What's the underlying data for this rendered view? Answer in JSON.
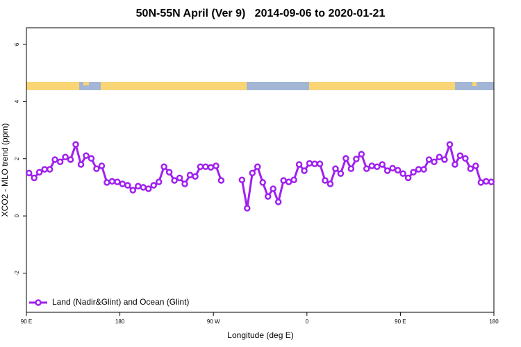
{
  "chart_data": {
    "type": "line",
    "title": "50N-55N April (Ver 9)   2014-09-06 to 2020-01-21",
    "x_label": "Longitude (deg E)",
    "y_label": "XCO2 - MLO trend (ppm)",
    "x": [
      92.5,
      97.5,
      102.5,
      107.5,
      112.5,
      117.5,
      122.5,
      127.5,
      132.5,
      137.5,
      142.5,
      147.5,
      152.5,
      157.5,
      162.5,
      167.5,
      172.5,
      177.5,
      182.5,
      187.5,
      192.5,
      197.5,
      202.5,
      207.5,
      212.5,
      217.5,
      222.5,
      227.5,
      232.5,
      237.5,
      242.5,
      247.5,
      252.5,
      257.5,
      262.5,
      267.5,
      272.5,
      277.5,
      282.5,
      287.5,
      292.5,
      297.5,
      302.5,
      307.5,
      312.5,
      317.5,
      322.5,
      327.5,
      332.5,
      337.5,
      342.5,
      347.5,
      352.5,
      357.5,
      362.5,
      367.5,
      372.5,
      377.5,
      382.5,
      387.5,
      392.5,
      397.5,
      402.5,
      407.5,
      412.5,
      417.5,
      422.5,
      427.5,
      432.5,
      437.5,
      442.5,
      447.5,
      452.5,
      457.5,
      462.5,
      467.5,
      472.5,
      477.5,
      482.5,
      487.5,
      492.5,
      497.5,
      502.5,
      507.5,
      512.5,
      517.5,
      522.5,
      527.5,
      532.5,
      537.5
    ],
    "series": [
      {
        "name": "Land (Nadir&Glint) and Ocean (Glint)",
        "color": "#a020f0",
        "values": [
          1.5,
          1.33,
          1.53,
          1.63,
          1.63,
          1.97,
          1.89,
          2.06,
          1.97,
          2.5,
          1.8,
          2.11,
          2.01,
          1.65,
          1.75,
          1.17,
          1.21,
          1.19,
          1.12,
          1.07,
          0.9,
          1.04,
          1.0,
          0.95,
          1.07,
          1.19,
          1.72,
          1.53,
          1.24,
          1.33,
          1.12,
          1.43,
          1.38,
          1.72,
          1.72,
          1.7,
          1.75,
          1.24,
          null,
          null,
          null,
          1.26,
          0.27,
          1.5,
          1.72,
          1.17,
          0.68,
          0.95,
          0.49,
          1.24,
          1.19,
          1.26,
          1.8,
          1.58,
          1.84,
          1.82,
          1.82,
          1.24,
          1.12,
          1.65,
          1.48,
          2.01,
          1.65,
          1.99,
          2.16,
          1.65,
          1.75,
          1.72,
          1.8,
          1.58,
          1.67,
          1.6,
          1.48,
          1.33,
          1.53,
          1.63,
          1.63,
          1.97,
          1.89,
          2.06,
          1.97,
          2.5,
          1.8,
          2.11,
          2.01,
          1.65,
          1.75,
          1.17,
          1.21,
          1.19
        ]
      }
    ],
    "xlim": [
      90,
      540
    ],
    "xticks": [
      {
        "value": 90,
        "label": "90 E"
      },
      {
        "value": 180,
        "label": "180"
      },
      {
        "value": 270,
        "label": "90 W"
      },
      {
        "value": 360,
        "label": "0"
      },
      {
        "value": 450,
        "label": "90 E"
      },
      {
        "value": 540,
        "label": "180"
      }
    ],
    "ylim": [
      -3.37,
      6.58
    ],
    "yticks": [
      -2,
      0,
      2,
      4,
      6
    ],
    "legend": "bottom-left"
  }
}
